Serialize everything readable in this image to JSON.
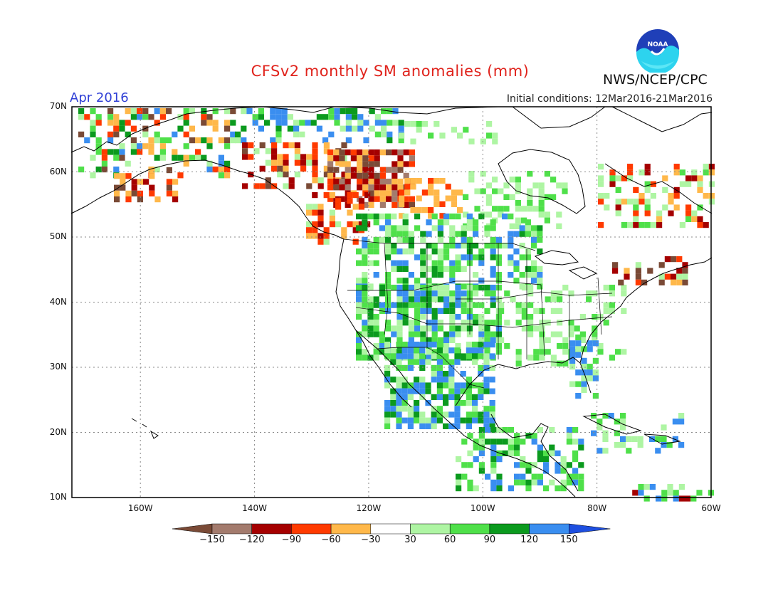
{
  "title": "CFSv2 monthly SM anomalies (mm)",
  "valid_month": "Apr 2016",
  "initial_conditions": "Initial conditions: 12Mar2016-21Mar2016",
  "agency": "NWS/NCEP/CPC",
  "logo_text": "NOAA",
  "map": {
    "lat_labels": [
      "70N",
      "60N",
      "50N",
      "40N",
      "30N",
      "20N",
      "10N"
    ],
    "lon_labels": [
      "160W",
      "140W",
      "120W",
      "100W",
      "80W",
      "60W"
    ],
    "region": "North America",
    "lat_range": [
      10,
      70
    ],
    "lon_range": [
      -172,
      -60
    ],
    "anomaly_regions": [
      {
        "area": "Central/Western US & Mexico",
        "anomaly": "wet",
        "range_mm": "60 to 150"
      },
      {
        "area": "Northern Canada (NWT/Saskatchewan/Alberta)",
        "anomaly": "dry",
        "range_mm": "-150 to -30"
      },
      {
        "area": "Southern Alaska",
        "anomaly": "mixed",
        "range_mm": "-150 to 150"
      },
      {
        "area": "Quebec / Labrador",
        "anomaly": "mixed",
        "range_mm": "-120 to 90"
      },
      {
        "area": "Southeastern US / Florida",
        "anomaly": "wet",
        "range_mm": "30 to 150"
      },
      {
        "area": "Central America",
        "anomaly": "wet",
        "range_mm": "30 to 150"
      }
    ]
  },
  "legend": {
    "labels": [
      "-150",
      "-120",
      "-90",
      "-60",
      "-30",
      "30",
      "60",
      "90",
      "120",
      "150"
    ],
    "colors": [
      "#7a4a36",
      "#a37b6d",
      "#a50000",
      "#ff3a00",
      "#ffb84a",
      "#ffffff",
      "#aef5a3",
      "#4fe04a",
      "#0b9a1e",
      "#3a8ef0",
      "#1e4fe0"
    ]
  },
  "colors": {
    "title": "#e0231c",
    "month": "#2f3fd6",
    "land_outline": "#000000",
    "grid": "#7f7f7f"
  }
}
